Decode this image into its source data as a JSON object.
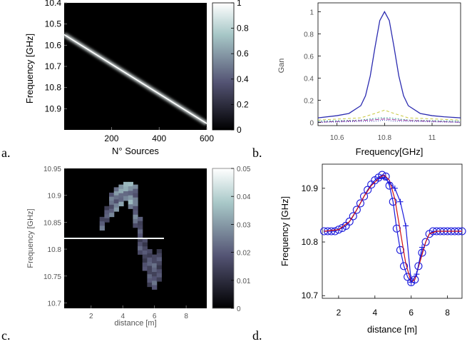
{
  "panel_labels": [
    "a.",
    "b.",
    "c.",
    "d."
  ],
  "chart_data": [
    {
      "id": "a",
      "type": "heatmap",
      "xlabel": "N° Sources",
      "ylabel": "Frequency [GHz]",
      "xlim": [
        1,
        600
      ],
      "ylim": [
        10.4,
        11.0
      ],
      "y_reversed": true,
      "x_ticks": [
        "200",
        "400",
        "600"
      ],
      "y_ticks": [
        "10.4",
        "10.5",
        "10.6",
        "10.7",
        "10.8",
        "10.9"
      ],
      "colorbar": {
        "ticks": [
          "0",
          "0.2",
          "0.4",
          "0.6",
          "0.8",
          "1"
        ],
        "range": [
          0,
          1
        ]
      },
      "colormap": "bone",
      "ridge": {
        "x": [
          1,
          600
        ],
        "y": [
          10.55,
          10.97
        ]
      }
    },
    {
      "id": "b",
      "type": "line",
      "xlabel": "Frequency[GHz]",
      "ylabel": "Gan",
      "xlim": [
        10.52,
        11.12
      ],
      "ylim": [
        -0.03,
        1.08
      ],
      "x_ticks": [
        "10.6",
        "10.8",
        "11"
      ],
      "y_ticks": [
        "0",
        "0.2",
        "0.4",
        "0.6",
        "0.8",
        "1"
      ],
      "series": [
        {
          "color": "#2b2bb0",
          "dash": "",
          "x": [
            10.52,
            10.6,
            10.65,
            10.7,
            10.72,
            10.74,
            10.76,
            10.78,
            10.8,
            10.82,
            10.84,
            10.86,
            10.88,
            10.9,
            10.95,
            11.0,
            11.05,
            11.12
          ],
          "y": [
            0.04,
            0.06,
            0.08,
            0.15,
            0.24,
            0.42,
            0.68,
            0.92,
            1.0,
            0.92,
            0.68,
            0.42,
            0.24,
            0.15,
            0.08,
            0.06,
            0.05,
            0.04
          ]
        },
        {
          "color": "#c8c840",
          "dash": "4,3",
          "x": [
            10.52,
            10.7,
            10.76,
            10.8,
            10.84,
            10.9,
            11.12
          ],
          "y": [
            0.02,
            0.04,
            0.08,
            0.11,
            0.08,
            0.04,
            0.02
          ]
        },
        {
          "color": "#40a0a0",
          "dash": "2,2",
          "x": [
            10.52,
            10.7,
            10.78,
            10.82,
            10.9,
            11.12
          ],
          "y": [
            0.01,
            0.02,
            0.04,
            0.04,
            0.02,
            0.01
          ]
        },
        {
          "color": "#a040a0",
          "dash": "6,2",
          "x": [
            10.52,
            10.74,
            10.8,
            10.86,
            11.12
          ],
          "y": [
            0.0,
            0.02,
            0.03,
            0.02,
            0.0
          ]
        },
        {
          "color": "#2b2bb0",
          "dash": "1,2",
          "x": [
            10.52,
            10.76,
            10.8,
            10.84,
            11.12
          ],
          "y": [
            0.0,
            0.01,
            0.02,
            0.01,
            0.0
          ]
        }
      ]
    },
    {
      "id": "c",
      "type": "heatmap",
      "xlabel": "distance [m]",
      "ylabel": "Frequency [GHz]",
      "xlim": [
        0.3,
        9.3
      ],
      "ylim": [
        10.69,
        10.95
      ],
      "x_ticks": [
        "2",
        "4",
        "6",
        "8"
      ],
      "y_ticks": [
        "10.7",
        "10.75",
        "10.8",
        "10.85",
        "10.9",
        "10.95"
      ],
      "colorbar": {
        "ticks": [
          "0",
          "0.01",
          "0.02",
          "0.03",
          "0.04",
          "0.05"
        ],
        "range": [
          0,
          0.05
        ]
      },
      "colormap": "bone",
      "line": {
        "y": 10.82,
        "x_from": 0.3,
        "x_to": 6.6
      },
      "columns": [
        {
          "x": 2.7,
          "f0": 10.835,
          "f1": 10.86,
          "v": 0.025
        },
        {
          "x": 3.0,
          "f0": 10.85,
          "f1": 10.88,
          "v": 0.022
        },
        {
          "x": 3.3,
          "f0": 10.86,
          "f1": 10.905,
          "v": 0.027
        },
        {
          "x": 3.6,
          "f0": 10.87,
          "f1": 10.915,
          "v": 0.03
        },
        {
          "x": 3.9,
          "f0": 10.88,
          "f1": 10.92,
          "v": 0.033
        },
        {
          "x": 4.2,
          "f0": 10.89,
          "f1": 10.925,
          "v": 0.036
        },
        {
          "x": 4.5,
          "f0": 10.875,
          "f1": 10.925,
          "v": 0.035
        },
        {
          "x": 4.8,
          "f0": 10.84,
          "f1": 10.92,
          "v": 0.028
        },
        {
          "x": 5.1,
          "f0": 10.79,
          "f1": 10.86,
          "v": 0.022
        },
        {
          "x": 5.4,
          "f0": 10.76,
          "f1": 10.82,
          "v": 0.02
        },
        {
          "x": 5.7,
          "f0": 10.73,
          "f1": 10.8,
          "v": 0.022
        },
        {
          "x": 6.0,
          "f0": 10.725,
          "f1": 10.79,
          "v": 0.024
        },
        {
          "x": 6.3,
          "f0": 10.74,
          "f1": 10.8,
          "v": 0.02
        }
      ]
    },
    {
      "id": "d",
      "type": "line",
      "xlabel": "distance [m]",
      "ylabel": "Frequency [GHz]",
      "xlim": [
        1.1,
        8.8
      ],
      "ylim": [
        10.695,
        10.945
      ],
      "x_ticks": [
        "2",
        "4",
        "6",
        "8"
      ],
      "y_ticks": [
        "10.7",
        "10.8",
        "10.9"
      ],
      "series": [
        {
          "color": "#1a1adc",
          "marker": "o",
          "x": [
            1.2,
            1.4,
            1.6,
            1.8,
            2.0,
            2.2,
            2.4,
            2.6,
            2.8,
            3.0,
            3.2,
            3.4,
            3.6,
            3.8,
            4.0,
            4.2,
            4.4,
            4.6,
            4.8,
            5.0,
            5.2,
            5.4,
            5.6,
            5.8,
            6.0,
            6.2,
            6.4,
            6.6,
            6.8,
            7.0,
            7.2,
            7.4,
            7.6,
            7.8,
            8.0,
            8.2,
            8.4,
            8.6,
            8.8
          ],
          "y": [
            10.82,
            10.82,
            10.82,
            10.82,
            10.823,
            10.826,
            10.83,
            10.838,
            10.848,
            10.86,
            10.872,
            10.885,
            10.897,
            10.907,
            10.915,
            10.92,
            10.925,
            10.922,
            10.905,
            10.875,
            10.825,
            10.785,
            10.755,
            10.735,
            10.725,
            10.73,
            10.755,
            10.78,
            10.8,
            10.815,
            10.82,
            10.82,
            10.82,
            10.82,
            10.82,
            10.82,
            10.82,
            10.82,
            10.82
          ]
        },
        {
          "color": "#d01010",
          "marker": "",
          "x": [
            1.2,
            2.0,
            2.6,
            3.0,
            3.4,
            3.8,
            4.2,
            4.5,
            4.8,
            5.1,
            5.4,
            5.7,
            6.0,
            6.2,
            6.5,
            6.8,
            7.0,
            7.4,
            8.8
          ],
          "y": [
            10.82,
            10.823,
            10.838,
            10.86,
            10.885,
            10.905,
            10.918,
            10.925,
            10.915,
            10.88,
            10.82,
            10.76,
            10.725,
            10.73,
            10.765,
            10.8,
            10.815,
            10.82,
            10.82
          ]
        },
        {
          "color": "#1a1adc",
          "marker": "+",
          "x": [
            4.2,
            4.5,
            4.8,
            5.1,
            5.4,
            5.7,
            6.0,
            6.3,
            6.6
          ],
          "y": [
            10.918,
            10.92,
            10.91,
            10.9,
            10.875,
            10.83,
            10.725,
            10.74,
            10.79
          ]
        }
      ]
    }
  ]
}
